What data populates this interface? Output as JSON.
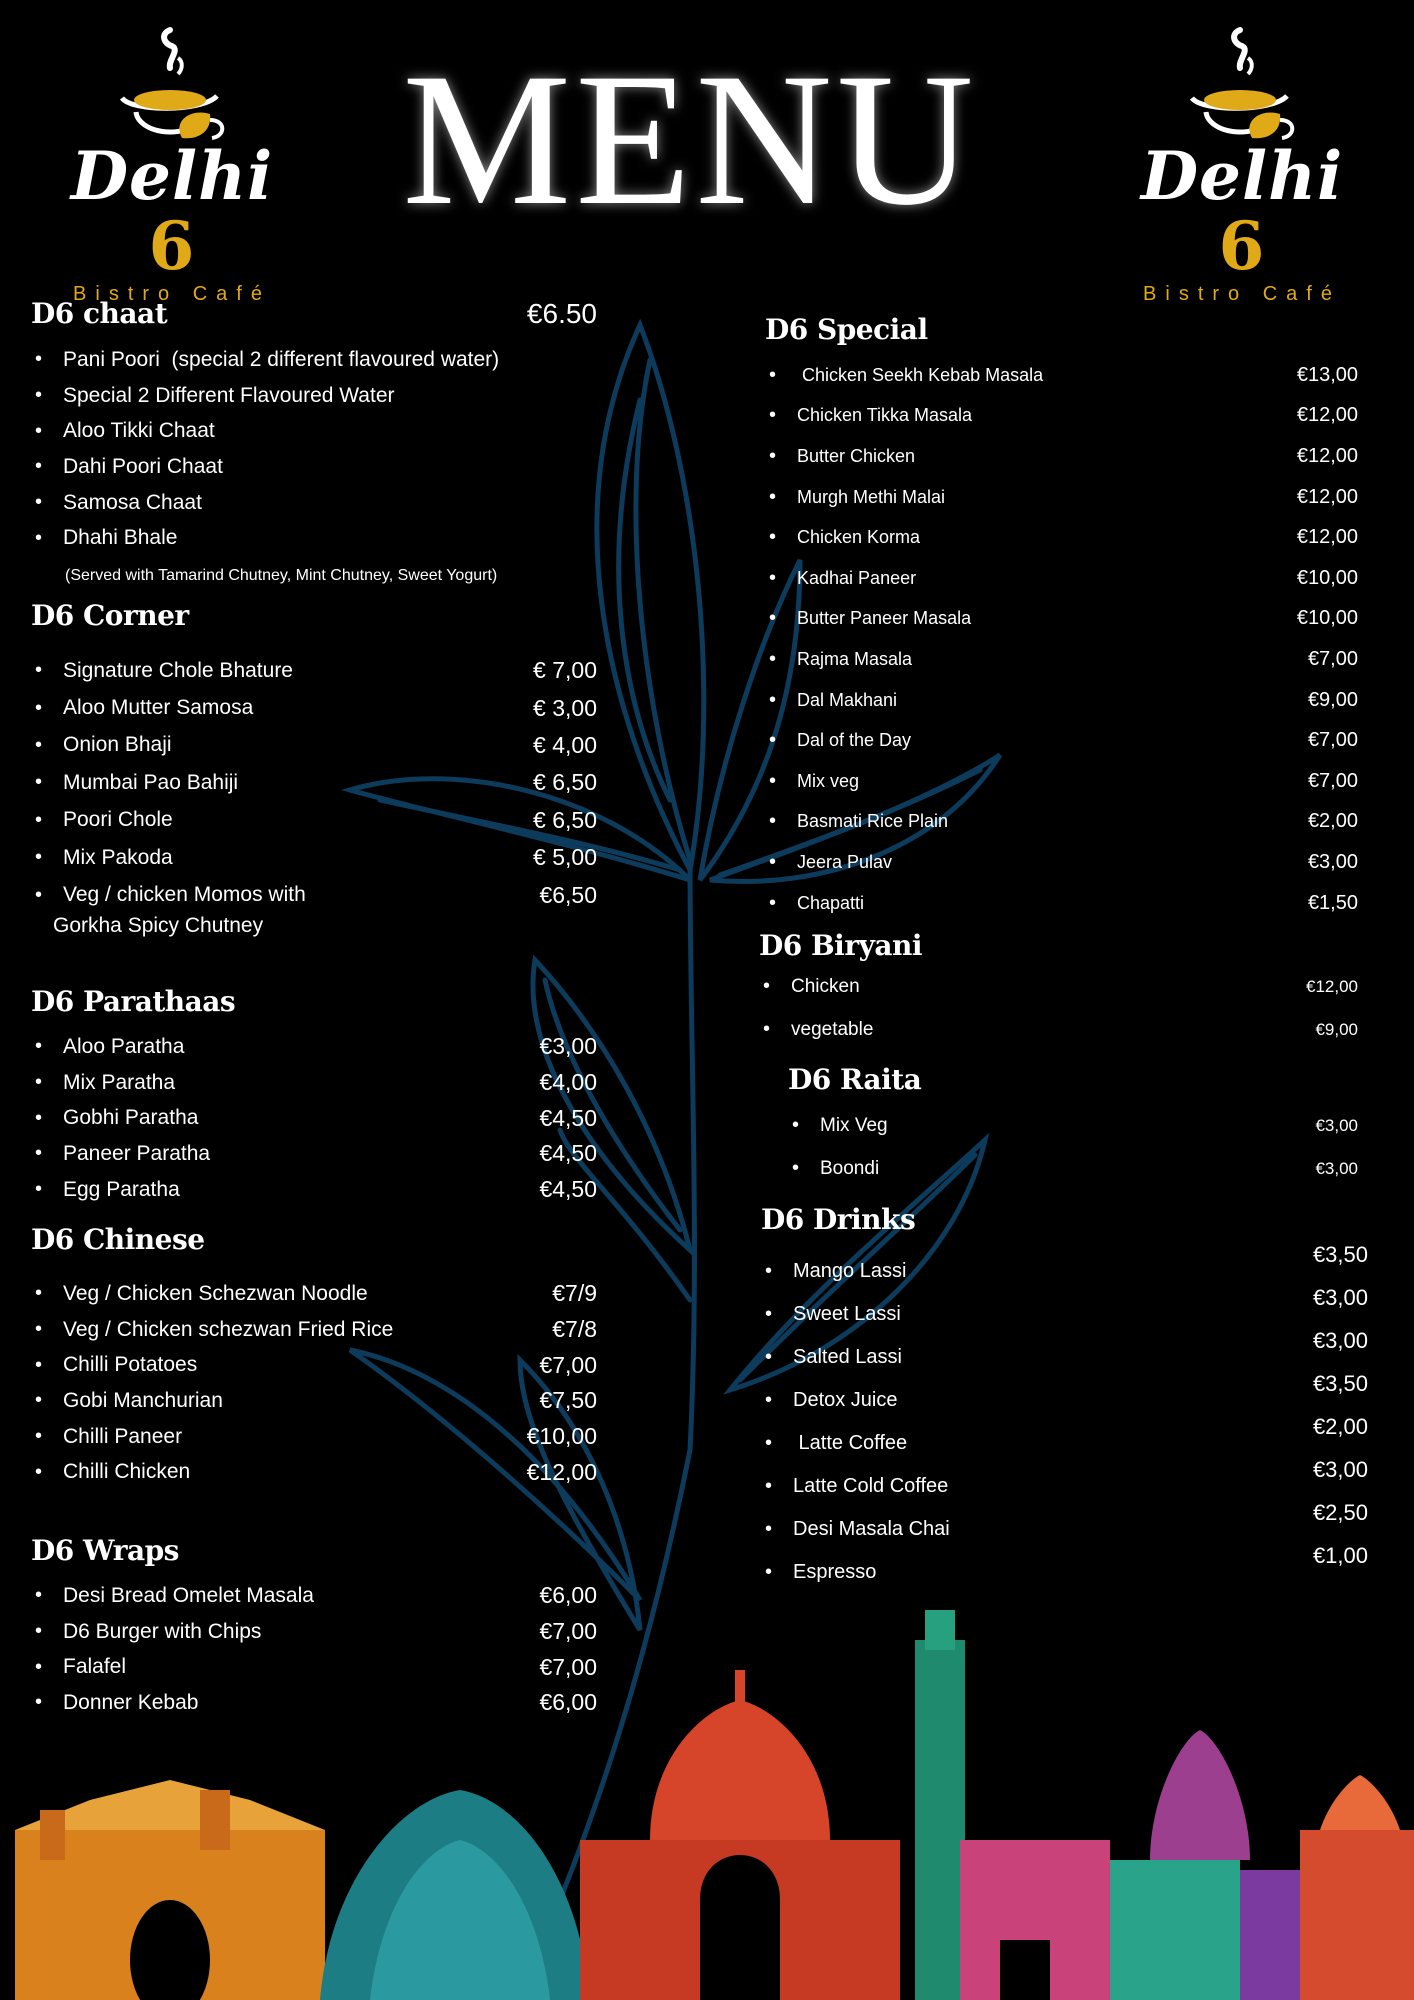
{
  "header": {
    "title": "MENU",
    "logo": {
      "brand": "Delhi",
      "brand_number": "6",
      "tagline": "Bistro Café"
    }
  },
  "colors": {
    "background": "#000000",
    "accent_gold": "#e0a917",
    "leaf_outline": "#0d3b5c",
    "text": "#ffffff"
  },
  "icons": [
    "coffee-cup-logo-icon",
    "leaf-vine-illustration",
    "india-skyline-illustration"
  ],
  "left_column": [
    {
      "id": "chaat",
      "heading": "D6 chaat",
      "price": "€6.50",
      "items": [
        {
          "name": "Pani Poori  (special 2 different flavoured water)",
          "price": ""
        },
        {
          "name": "Special 2 Different Flavoured Water",
          "price": ""
        },
        {
          "name": "Aloo Tikki Chaat",
          "price": ""
        },
        {
          "name": "Dahi Poori Chaat",
          "price": ""
        },
        {
          "name": "Samosa Chaat",
          "price": ""
        },
        {
          "name": "Dhahi Bhale",
          "price": ""
        }
      ],
      "note": "(Served with Tamarind Chutney, Mint Chutney, Sweet Yogurt)"
    },
    {
      "id": "corner",
      "heading": "D6 Corner",
      "items": [
        {
          "name": "Signature Chole Bhature",
          "price": "€ 7,00"
        },
        {
          "name": "Aloo Mutter Samosa",
          "price": "€ 3,00"
        },
        {
          "name": "Onion Bhaji",
          "price": "€ 4,00"
        },
        {
          "name": "Mumbai Pao Bahiji",
          "price": "€ 6,50"
        },
        {
          "name": "Poori Chole",
          "price": "€ 6,50"
        },
        {
          "name": "Mix Pakoda",
          "price": "€ 5,00"
        },
        {
          "name": "Veg / chicken Momos with",
          "price": "€6,50"
        }
      ],
      "note": "Gorkha Spicy Chutney"
    },
    {
      "id": "parathaas",
      "heading": "D6 Parathaas",
      "items": [
        {
          "name": "Aloo Paratha",
          "price": "€3,00"
        },
        {
          "name": "Mix Paratha",
          "price": "€4,00"
        },
        {
          "name": "Gobhi Paratha",
          "price": "€4,50"
        },
        {
          "name": "Paneer Paratha",
          "price": "€4,50"
        },
        {
          "name": "Egg Paratha",
          "price": "€4,50"
        }
      ]
    },
    {
      "id": "chinese",
      "heading": "D6 Chinese",
      "items": [
        {
          "name": "Veg / Chicken Schezwan Noodle",
          "price": "€7/9"
        },
        {
          "name": "Veg / Chicken schezwan Fried Rice",
          "price": "€7/8"
        },
        {
          "name": "Chilli Potatoes",
          "price": "€7,00"
        },
        {
          "name": "Gobi Manchurian",
          "price": "€7,50"
        },
        {
          "name": "Chilli Paneer",
          "price": "€10,00"
        },
        {
          "name": "Chilli Chicken",
          "price": "€12,00"
        }
      ]
    },
    {
      "id": "wraps",
      "heading": "D6 Wraps",
      "items": [
        {
          "name": "Desi Bread Omelet Masala",
          "price": "€6,00"
        },
        {
          "name": "D6 Burger with Chips",
          "price": "€7,00"
        },
        {
          "name": "Falafel",
          "price": "€7,00"
        },
        {
          "name": "Donner Kebab",
          "price": "€6,00"
        }
      ]
    }
  ],
  "right_column": [
    {
      "id": "special",
      "heading": "D6 Special",
      "items": [
        {
          "name": " Chicken Seekh Kebab Masala",
          "price": "€13,00"
        },
        {
          "name": "Chicken Tikka Masala",
          "price": "€12,00"
        },
        {
          "name": "Butter Chicken",
          "price": "€12,00"
        },
        {
          "name": "Murgh Methi Malai",
          "price": "€12,00"
        },
        {
          "name": "Chicken Korma",
          "price": "€12,00"
        },
        {
          "name": "Kadhai Paneer",
          "price": "€10,00"
        },
        {
          "name": "Butter Paneer Masala",
          "price": "€10,00"
        },
        {
          "name": "Rajma Masala",
          "price": "€7,00"
        },
        {
          "name": "Dal Makhani",
          "price": "€9,00"
        },
        {
          "name": "Dal of the Day",
          "price": "€7,00"
        },
        {
          "name": "Mix veg",
          "price": "€7,00"
        },
        {
          "name": "Basmati Rice Plain",
          "price": "€2,00"
        },
        {
          "name": "Jeera Pulav",
          "price": "€3,00"
        },
        {
          "name": "Chapatti",
          "price": "€1,50"
        }
      ]
    },
    {
      "id": "biryani",
      "heading": "D6 Biryani",
      "items": [
        {
          "name": "Chicken",
          "price": "€12,00"
        },
        {
          "name": "vegetable",
          "price": "€9,00"
        }
      ]
    },
    {
      "id": "raita",
      "heading": "D6 Raita",
      "items": [
        {
          "name": "Mix Veg",
          "price": "€3,00"
        },
        {
          "name": "Boondi",
          "price": "€3,00"
        }
      ]
    },
    {
      "id": "drinks",
      "heading": "D6 Drinks",
      "items": [
        {
          "name": "Mango Lassi",
          "price": "€3,50"
        },
        {
          "name": "Sweet Lassi",
          "price": "€3,00"
        },
        {
          "name": "Salted Lassi",
          "price": "€3,00"
        },
        {
          "name": "Detox Juice",
          "price": "€3,50"
        },
        {
          "name": " Latte Coffee",
          "price": "€2,00"
        },
        {
          "name": "Latte Cold Coffee",
          "price": "€3,00"
        },
        {
          "name": "Desi Masala Chai",
          "price": "€2,50"
        },
        {
          "name": "Espresso",
          "price": "€1,00"
        }
      ]
    }
  ]
}
